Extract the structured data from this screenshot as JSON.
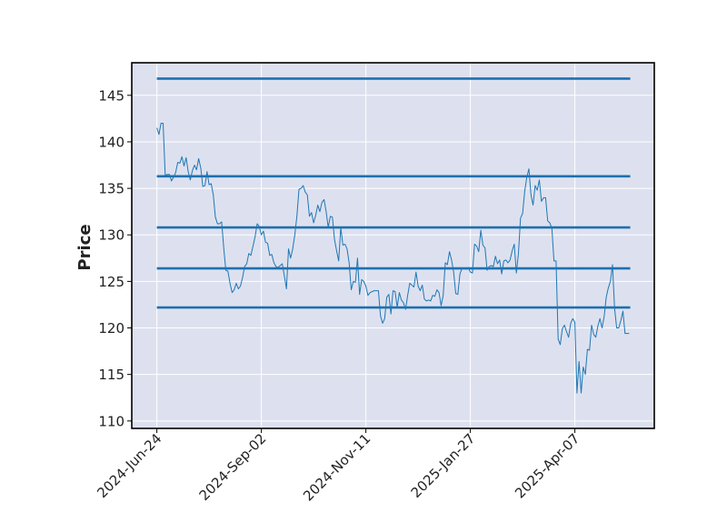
{
  "chart_data": {
    "type": "line",
    "title": "",
    "xlabel": "",
    "ylabel": "Price",
    "x_tick_labels": [
      "2024-Jun-24",
      "2024-Sep-02",
      "2024-Nov-11",
      "2025-Jan-27",
      "2025-Apr-07"
    ],
    "x_tick_indices": [
      0,
      50,
      100,
      150,
      200
    ],
    "x_range": [
      -12,
      238
    ],
    "y_ticks": [
      110,
      115,
      120,
      125,
      130,
      135,
      140,
      145
    ],
    "ylim": [
      109.2,
      148.5
    ],
    "grid": true,
    "colors": {
      "plot_background": "#dde1ef",
      "price_line": "#1f77b4",
      "hline": "#1f6faf",
      "frame": "#000000",
      "grid": "#ffffff"
    },
    "horizontal_lines": [
      146.8,
      136.3,
      130.8,
      126.4,
      122.2
    ],
    "series": [
      {
        "values": [
          141.5,
          140.8,
          142.0,
          142.0,
          136.4,
          136.5,
          136.5,
          135.8,
          136.2,
          136.7,
          137.8,
          137.7,
          138.4,
          137.4,
          138.3,
          136.8,
          135.9,
          136.9,
          137.5,
          137.0,
          138.2,
          137.2,
          135.2,
          135.3,
          136.8,
          135.4,
          135.5,
          134.3,
          131.9,
          131.2,
          131.2,
          131.4,
          128.6,
          126.2,
          126.1,
          124.8,
          123.8,
          124.1,
          124.8,
          124.2,
          124.5,
          125.4,
          126.6,
          126.9,
          128.0,
          127.8,
          128.8,
          129.8,
          131.2,
          130.9,
          130.0,
          130.4,
          129.2,
          129.1,
          127.8,
          127.9,
          127.0,
          126.6,
          126.5,
          126.7,
          126.9,
          125.6,
          124.2,
          128.5,
          127.5,
          128.5,
          130.0,
          132.0,
          134.9,
          135.0,
          135.3,
          134.6,
          134.3,
          132.0,
          132.4,
          131.3,
          132.1,
          133.2,
          132.5,
          133.5,
          133.8,
          132.5,
          130.8,
          132.0,
          131.9,
          129.5,
          128.3,
          127.2,
          130.8,
          128.9,
          129.0,
          128.5,
          127.0,
          124.1,
          125.0,
          124.9,
          127.5,
          123.6,
          125.2,
          125.0,
          124.5,
          123.5,
          123.8,
          123.9,
          124.0,
          124.0,
          124.0,
          121.3,
          120.5,
          121.0,
          123.3,
          123.6,
          121.5,
          124.0,
          123.9,
          122.2,
          123.8,
          123.0,
          122.7,
          122.0,
          123.5,
          124.8,
          124.6,
          124.4,
          126.0,
          124.5,
          124.0,
          124.6,
          123.1,
          122.9,
          123.0,
          122.9,
          123.5,
          123.4,
          124.1,
          123.8,
          122.4,
          123.5,
          127.0,
          126.8,
          128.2,
          127.3,
          126.0,
          123.7,
          123.6,
          125.8,
          126.4,
          126.4,
          126.3,
          126.5,
          126.0,
          125.9,
          129.0,
          128.8,
          128.2,
          130.5,
          128.9,
          128.6,
          126.2,
          126.6,
          126.7,
          126.6,
          127.7,
          126.9,
          127.3,
          125.8,
          127.2,
          127.3,
          127.0,
          127.3,
          128.3,
          129.0,
          125.9,
          128.0,
          131.8,
          132.3,
          134.7,
          136.2,
          137.1,
          134.3,
          133.2,
          135.3,
          134.8,
          135.9,
          133.6,
          134.0,
          134.0,
          131.5,
          131.3,
          130.7,
          127.2,
          127.2,
          118.8,
          118.2,
          119.9,
          120.3,
          119.6,
          119.0,
          120.5,
          121.0,
          120.6,
          113.0,
          116.4,
          113.0,
          115.8,
          115.0,
          117.7,
          117.6,
          120.3,
          119.3,
          119.0,
          120.2,
          121.0,
          120.0,
          121.2,
          123.3,
          124.3,
          125.0,
          126.8,
          122.1,
          120.0,
          120.0,
          120.8,
          121.8,
          119.4,
          119.4,
          119.4
        ]
      }
    ]
  }
}
